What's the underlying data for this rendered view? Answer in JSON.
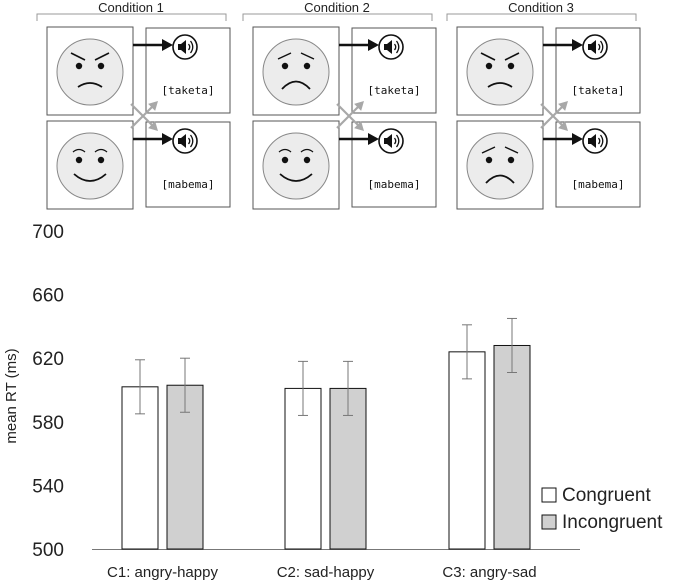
{
  "stimuli": {
    "conditions": [
      {
        "label": "Condition 1",
        "top_face": "angry",
        "bottom_face": "happy",
        "top_word": "[taketa]",
        "bottom_word": "[mabema]"
      },
      {
        "label": "Condition 2",
        "top_face": "sad",
        "bottom_face": "happy",
        "top_word": "[taketa]",
        "bottom_word": "[mabema]"
      },
      {
        "label": "Condition 3",
        "top_face": "angry",
        "bottom_face": "sad",
        "top_word": "[taketa]",
        "bottom_word": "[mabema]"
      }
    ],
    "icons": [
      "face-icon",
      "arrow-icon",
      "speaker-icon",
      "cross-arrows-icon"
    ]
  },
  "chart_data": {
    "type": "bar",
    "title": "",
    "xlabel": "",
    "ylabel": "mean RT (ms)",
    "ylim": [
      500,
      700
    ],
    "yticks": [
      500,
      540,
      580,
      620,
      660,
      700
    ],
    "categories": [
      "C1: angry-happy",
      "C2: sad-happy",
      "C3: angry-sad"
    ],
    "series": [
      {
        "name": "Congruent",
        "color": "#ffffff",
        "values": [
          602,
          601,
          624
        ],
        "error": [
          17,
          17,
          17
        ]
      },
      {
        "name": "Incongruent",
        "color": "#d0d0d0",
        "values": [
          603,
          601,
          628
        ],
        "error": [
          17,
          17,
          17
        ]
      }
    ],
    "grid": false,
    "legend_position": "bottom-right"
  }
}
